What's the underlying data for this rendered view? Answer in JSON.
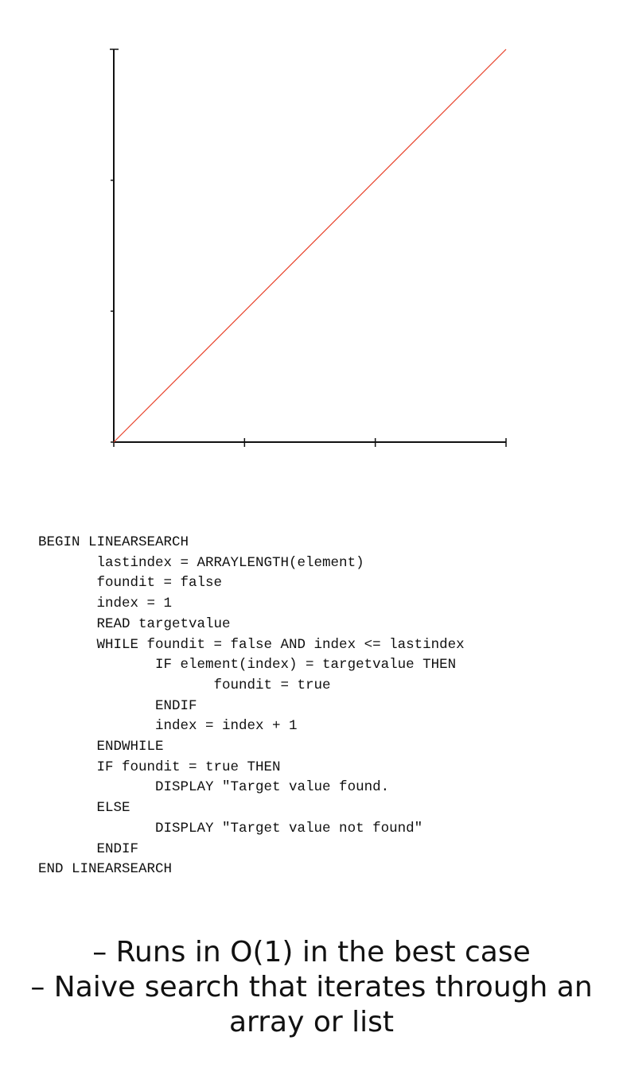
{
  "chart_data": {
    "type": "line",
    "title": "",
    "xlabel": "",
    "ylabel": "",
    "xlim": [
      0,
      3
    ],
    "ylim": [
      0,
      3
    ],
    "x_ticks": [
      0,
      1,
      2,
      3
    ],
    "y_ticks": [
      0,
      1,
      2,
      3
    ],
    "grid": false,
    "series": [
      {
        "x": [
          0,
          3
        ],
        "y": [
          0,
          3
        ],
        "color": "#e8432c"
      }
    ]
  },
  "code": {
    "lines": [
      "BEGIN LINEARSEARCH",
      "       lastindex = ARRAYLENGTH(element)",
      "       foundit = false",
      "       index = 1",
      "       READ targetvalue",
      "       WHILE foundit = false AND index <= lastindex",
      "              IF element(index) = targetvalue THEN",
      "                     foundit = true",
      "              ENDIF",
      "              index = index + 1",
      "       ENDWHILE",
      "       IF foundit = true THEN",
      "              DISPLAY \"Target value found.",
      "       ELSE",
      "              DISPLAY \"Target value not found\"",
      "       ENDIF",
      "END LINEARSEARCH"
    ]
  },
  "notes": {
    "line1": "– Runs in O(1) in the best case",
    "line2": "– Naive search that iterates through an",
    "line3": "array or list"
  }
}
